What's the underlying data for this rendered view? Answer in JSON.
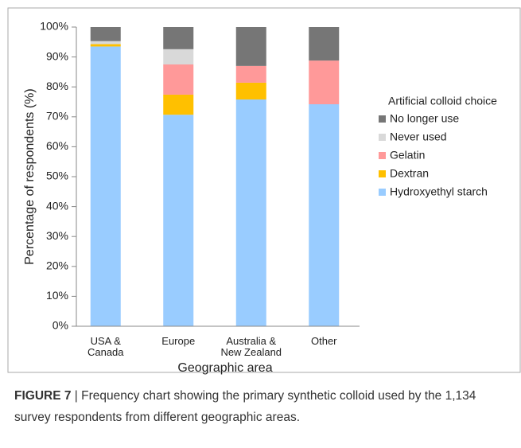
{
  "chart_data": {
    "type": "stacked_bar",
    "xlabel": "Geographic area",
    "ylabel": "Percentage of respondents (%)",
    "legend_title": "Artificial colloid choice",
    "categories": [
      "USA &\nCanada",
      "Europe",
      "Australia &\nNew Zealand",
      "Other"
    ],
    "series": [
      {
        "name": "Hydroxyethyl starch",
        "color": "#99ccff",
        "values": [
          93.5,
          70.7,
          75.8,
          74.2
        ]
      },
      {
        "name": "Dextran",
        "color": "#ffc000",
        "values": [
          0.8,
          6.7,
          5.6,
          0
        ]
      },
      {
        "name": "Gelatin",
        "color": "#ff9999",
        "values": [
          0,
          10.1,
          5.6,
          14.6
        ]
      },
      {
        "name": "Never used",
        "color": "#d9d9d9",
        "values": [
          1,
          5.1,
          0,
          0
        ]
      },
      {
        "name": "No longer use",
        "color": "#767676",
        "values": [
          4.7,
          7.4,
          13,
          11.2
        ]
      }
    ],
    "ylim": [
      0,
      100
    ],
    "yticks": [
      {
        "value": 0,
        "label": "0%"
      },
      {
        "value": 10,
        "label": "10%"
      },
      {
        "value": 20,
        "label": "20%"
      },
      {
        "value": 30,
        "label": "30%"
      },
      {
        "value": 40,
        "label": "40%"
      },
      {
        "value": 50,
        "label": "50%"
      },
      {
        "value": 60,
        "label": "60%"
      },
      {
        "value": 70,
        "label": "70%"
      },
      {
        "value": 80,
        "label": "80%"
      },
      {
        "value": 90,
        "label": "90%"
      },
      {
        "value": 100,
        "label": "100%"
      }
    ],
    "legend_position": "right"
  },
  "caption": {
    "label": "FIGURE 7",
    "text": "| Frequency chart showing the primary synthetic colloid used by the 1,134 survey respondents from different geographic areas."
  }
}
